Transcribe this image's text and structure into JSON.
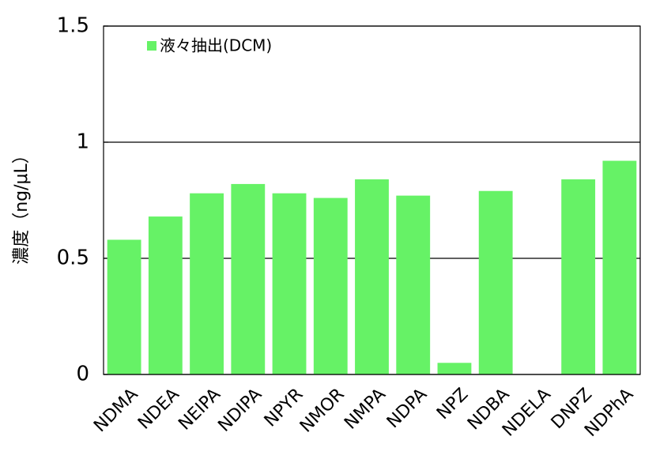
{
  "chart_data": {
    "type": "bar",
    "y_label": "濃度（ng/μL）",
    "categories": [
      "NDMA",
      "NDEA",
      "NEIPA",
      "NDIPA",
      "NPYR",
      "NMOR",
      "NMPA",
      "NDPA",
      "NPZ",
      "NDBA",
      "NDELA",
      "DNPZ",
      "NDPhA"
    ],
    "series": [
      {
        "name": "液々抽出(DCM)",
        "color": "#66f266",
        "values": [
          0.58,
          0.68,
          0.78,
          0.82,
          0.78,
          0.76,
          0.84,
          0.77,
          0.05,
          0.79,
          null,
          0.84,
          0.92
        ]
      }
    ],
    "ylim": [
      0,
      1.5
    ],
    "yticks": [
      0,
      0.5,
      1,
      1.5
    ],
    "grid": true,
    "legend": "top-left"
  }
}
